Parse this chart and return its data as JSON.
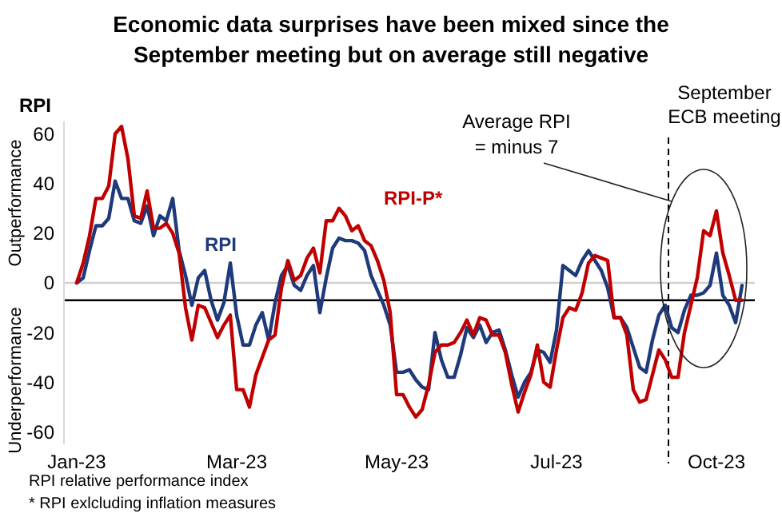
{
  "chart_data": {
    "type": "line",
    "title": "Economic data surprises have been mixed since the September meeting but on average still negative",
    "ylabel": "RPI",
    "categories": [
      "Jan-23",
      null,
      null,
      null,
      null,
      null,
      null,
      null,
      null,
      null,
      null,
      null,
      null,
      null,
      null,
      null,
      null,
      null,
      null,
      null,
      null,
      null,
      null,
      null,
      null,
      "Mar-23",
      null,
      null,
      null,
      null,
      null,
      null,
      null,
      null,
      null,
      null,
      null,
      null,
      null,
      null,
      null,
      null,
      null,
      null,
      null,
      null,
      null,
      null,
      null,
      null,
      "May-23",
      null,
      null,
      null,
      null,
      null,
      null,
      null,
      null,
      null,
      null,
      null,
      null,
      null,
      null,
      null,
      null,
      null,
      null,
      null,
      null,
      null,
      null,
      null,
      null,
      "Jul-23",
      null,
      null,
      null,
      null,
      null,
      null,
      null,
      null,
      null,
      null,
      null,
      null,
      null,
      null,
      null,
      null,
      null,
      null,
      null,
      null,
      null,
      null,
      null,
      null,
      "Oct-23",
      null,
      null,
      null,
      null
    ],
    "ylim": [
      -65,
      65
    ],
    "yticks": [
      -60,
      -40,
      -20,
      0,
      20,
      40,
      60
    ],
    "grid": false,
    "legend": false,
    "line_style": "solid",
    "marker": "none",
    "ref_lines": [
      {
        "axis": "y",
        "value": 0,
        "label": null,
        "color": "#d0d0d0",
        "line_style": "solid"
      },
      {
        "axis": "y",
        "value": -7,
        "label": null,
        "color": "#000000",
        "line_style": "solid"
      }
    ],
    "annotations": [
      "Outperformance",
      "Underperformance",
      "Average RPI = minus 7",
      "RPI relative performance index",
      "* RPI exlcluding inflation measures",
      "September ECB meeting"
    ],
    "series": [
      {
        "name": "RPI",
        "color": "#1f3a7a",
        "values": [
          0,
          2,
          13,
          23,
          23,
          26,
          41,
          34,
          34,
          25,
          24,
          31,
          19,
          27,
          25,
          34,
          13,
          3,
          -9,
          2,
          5,
          -7,
          -15,
          -8,
          8,
          -13,
          -25,
          -25,
          -17,
          -12,
          -23,
          -8,
          3,
          7,
          -1,
          -3,
          3,
          7,
          -12,
          2,
          14,
          18,
          17,
          17,
          16,
          13,
          3,
          -3,
          -9,
          -17,
          -36,
          -36,
          -35,
          -39,
          -42,
          -43,
          -20,
          -31,
          -38,
          -38,
          -29,
          -18,
          -22,
          -17,
          -24,
          -20,
          -19,
          -27,
          -37,
          -46,
          -40,
          -36,
          -27,
          -28,
          -32,
          -19,
          7,
          5,
          3,
          9,
          13,
          9,
          5,
          -2,
          -14,
          -14,
          -18,
          -26,
          -34,
          -36,
          -23,
          -13,
          -9,
          -18,
          -20,
          -11,
          -5,
          -5,
          -4,
          -1,
          12,
          -5,
          -9,
          -16,
          -1
        ]
      },
      {
        "name": "RPI-P*",
        "color": "#c00000",
        "values": [
          0,
          8,
          19,
          34,
          34,
          39,
          60,
          63,
          50,
          27,
          26,
          37,
          22,
          22,
          24,
          20,
          12,
          -10,
          -23,
          -9,
          -10,
          -16,
          -22,
          -17,
          -13,
          -43,
          -43,
          -50,
          -37,
          -30,
          -23,
          -21,
          -2,
          9,
          1,
          3,
          10,
          14,
          4,
          25,
          25,
          30,
          27,
          21,
          23,
          17,
          15,
          9,
          1,
          -12,
          -45,
          -45,
          -50,
          -54,
          -51,
          -41,
          -28,
          -25,
          -25,
          -24,
          -20,
          -15,
          -21,
          -14,
          -15,
          -21,
          -21,
          -28,
          -41,
          -52,
          -44,
          -37,
          -25,
          -40,
          -42,
          -27,
          -14,
          -10,
          -11,
          -4,
          8,
          11,
          10,
          9,
          -14,
          -14,
          -21,
          -43,
          -48,
          -47,
          -37,
          -27,
          -31,
          -38,
          -38,
          -20,
          -9,
          2,
          21,
          19,
          29,
          12,
          3,
          -7,
          -7
        ]
      }
    ]
  }
}
